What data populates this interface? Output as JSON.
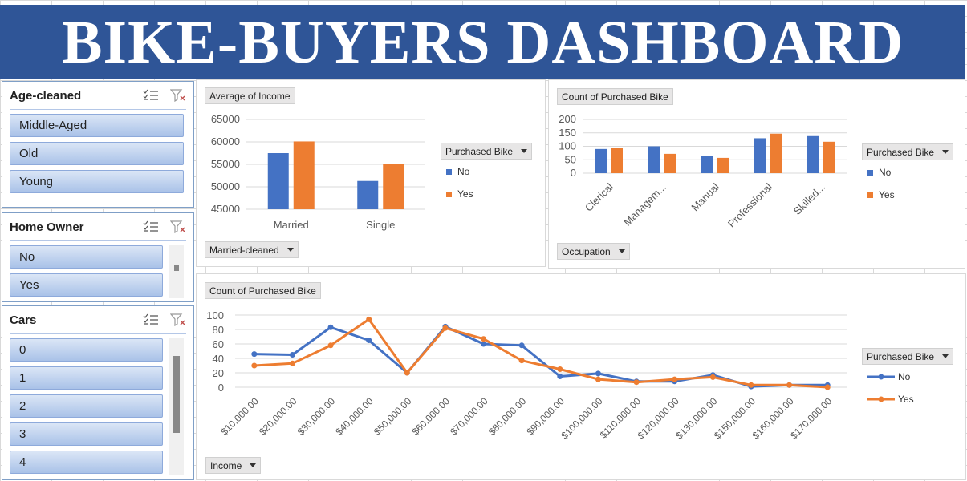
{
  "dashboard": {
    "title": "BIKE-BUYERS DASHBOARD"
  },
  "colors": {
    "banner": "#2f5597",
    "no": "#4472c4",
    "yes": "#ed7d31"
  },
  "slicers": {
    "age": {
      "title": "Age-cleaned",
      "items": [
        "Middle-Aged",
        "Old",
        "Young"
      ]
    },
    "home_owner": {
      "title": "Home Owner",
      "items": [
        "No",
        "Yes"
      ]
    },
    "cars": {
      "title": "Cars",
      "items": [
        "0",
        "1",
        "2",
        "3",
        "4"
      ]
    }
  },
  "income_chart": {
    "value_button": "Average of Income",
    "axis_button": "Married-cleaned",
    "legend_button": "Purchased Bike",
    "legend": [
      "No",
      "Yes"
    ]
  },
  "occupation_chart": {
    "value_button": "Count of Purchased Bike",
    "axis_button": "Occupation",
    "legend_button": "Purchased Bike",
    "legend": [
      "No",
      "Yes"
    ]
  },
  "line_chart": {
    "value_button": "Count of Purchased Bike",
    "axis_button": "Income",
    "legend_button": "Purchased Bike",
    "legend": [
      "No",
      "Yes"
    ]
  },
  "chart_data": [
    {
      "type": "bar",
      "categories": [
        "Married",
        "Single"
      ],
      "series": [
        {
          "name": "No",
          "values": [
            57500,
            51300
          ]
        },
        {
          "name": "Yes",
          "values": [
            60100,
            55000
          ]
        }
      ],
      "ylim": [
        45000,
        65000
      ],
      "yticks": [
        "65000",
        "60000",
        "55000",
        "50000",
        "45000"
      ],
      "grid": true,
      "legend": "right"
    },
    {
      "type": "bar",
      "categories": [
        "Clerical",
        "Managem...",
        "Manual",
        "Professional",
        "Skilled..."
      ],
      "series": [
        {
          "name": "No",
          "values": [
            90,
            100,
            65,
            130,
            138
          ]
        },
        {
          "name": "Yes",
          "values": [
            95,
            72,
            57,
            147,
            117
          ]
        }
      ],
      "ylim": [
        0,
        200
      ],
      "yticks": [
        "200",
        "150",
        "100",
        "50",
        "0"
      ],
      "grid": true,
      "legend": "right"
    },
    {
      "type": "line",
      "categories": [
        "$10,000.00",
        "$20,000.00",
        "$30,000.00",
        "$40,000.00",
        "$50,000.00",
        "$60,000.00",
        "$70,000.00",
        "$80,000.00",
        "$90,000.00",
        "$100,000.00",
        "$110,000.00",
        "$120,000.00",
        "$130,000.00",
        "$150,000.00",
        "$160,000.00",
        "$170,000.00"
      ],
      "series": [
        {
          "name": "No",
          "values": [
            46,
            45,
            83,
            65,
            20,
            84,
            60,
            58,
            15,
            19,
            8,
            8,
            17,
            1,
            3,
            3
          ]
        },
        {
          "name": "Yes",
          "values": [
            30,
            33,
            58,
            94,
            20,
            82,
            67,
            37,
            25,
            11,
            7,
            11,
            14,
            3,
            3,
            0
          ]
        }
      ],
      "ylim": [
        0,
        100
      ],
      "yticks": [
        "100",
        "80",
        "60",
        "40",
        "20",
        "0"
      ],
      "grid": true,
      "legend": "right"
    }
  ]
}
